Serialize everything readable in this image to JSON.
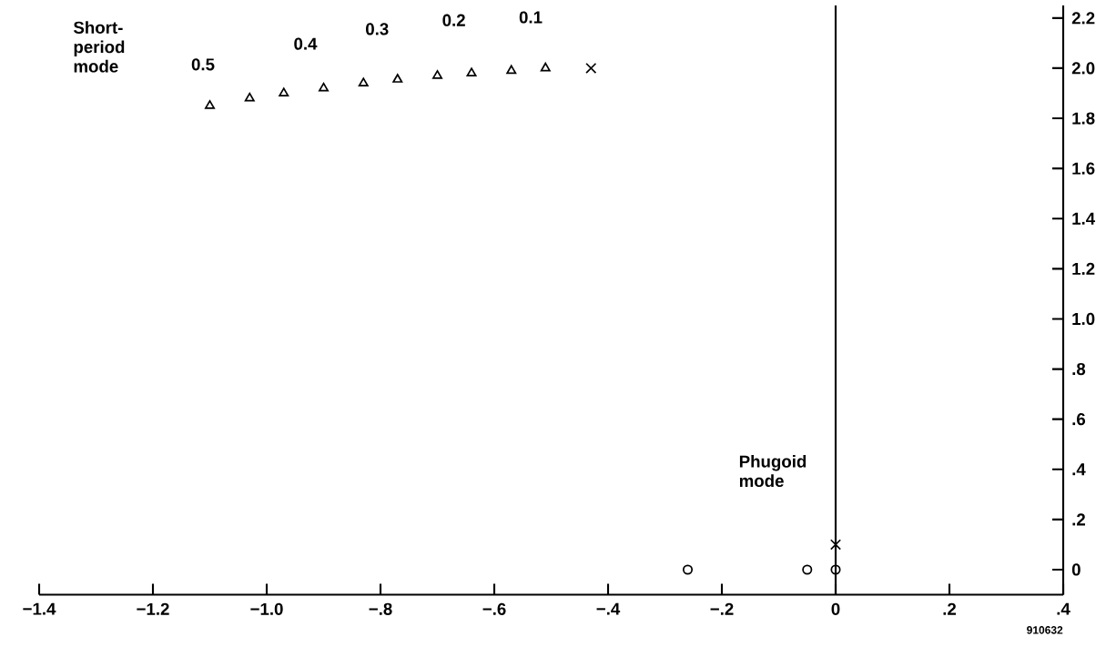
{
  "chart_data": {
    "type": "scatter",
    "series": [
      {
        "marker": "triangle",
        "color": "#000000",
        "x": [
          -1.1,
          -1.03,
          -0.97,
          -0.9,
          -0.83,
          -0.77,
          -0.7,
          -0.64,
          -0.57,
          -0.51
        ],
        "values": [
          1.85,
          1.88,
          1.9,
          1.92,
          1.94,
          1.955,
          1.97,
          1.98,
          1.99,
          2.0
        ]
      },
      {
        "marker": "cross",
        "color": "#000000",
        "x": [
          -0.43,
          0
        ],
        "values": [
          2.0,
          0.1
        ]
      },
      {
        "marker": "circle",
        "color": "#000000",
        "x": [
          -0.26,
          -0.05,
          0
        ],
        "values": [
          0,
          0,
          0
        ]
      }
    ],
    "xlim": [
      -1.4,
      0.4
    ],
    "ylim": [
      -0.1,
      2.25
    ],
    "xticks": [
      {
        "value": -1.4,
        "label": "−1.4"
      },
      {
        "value": -1.2,
        "label": "−1.2"
      },
      {
        "value": -1.0,
        "label": "−1.0"
      },
      {
        "value": -0.8,
        "label": "−.8"
      },
      {
        "value": -0.6,
        "label": "−.6"
      },
      {
        "value": -0.4,
        "label": "−.4"
      },
      {
        "value": -0.2,
        "label": "−.2"
      },
      0,
      {
        "value": 0.2,
        "label": ".2"
      },
      {
        "value": 0.4,
        "label": ".4"
      }
    ],
    "yticks": [
      0,
      {
        "value": 0.2,
        "label": ".2"
      },
      {
        "value": 0.4,
        "label": ".4"
      },
      {
        "value": 0.6,
        "label": ".6"
      },
      {
        "value": 0.8,
        "label": ".8"
      },
      {
        "value": 1.0,
        "label": "1.0"
      },
      1.2,
      1.4,
      1.6,
      1.8,
      {
        "value": 2.0,
        "label": "2.0"
      },
      2.2
    ],
    "ref_lines": [
      {
        "axis": "x",
        "value": 0,
        "color": "#000000"
      }
    ],
    "annotations": [
      "Short-period mode",
      "0.5",
      "0.4",
      "0.3",
      "0.2",
      "0.1",
      "Phugoid mode",
      "910632"
    ]
  }
}
